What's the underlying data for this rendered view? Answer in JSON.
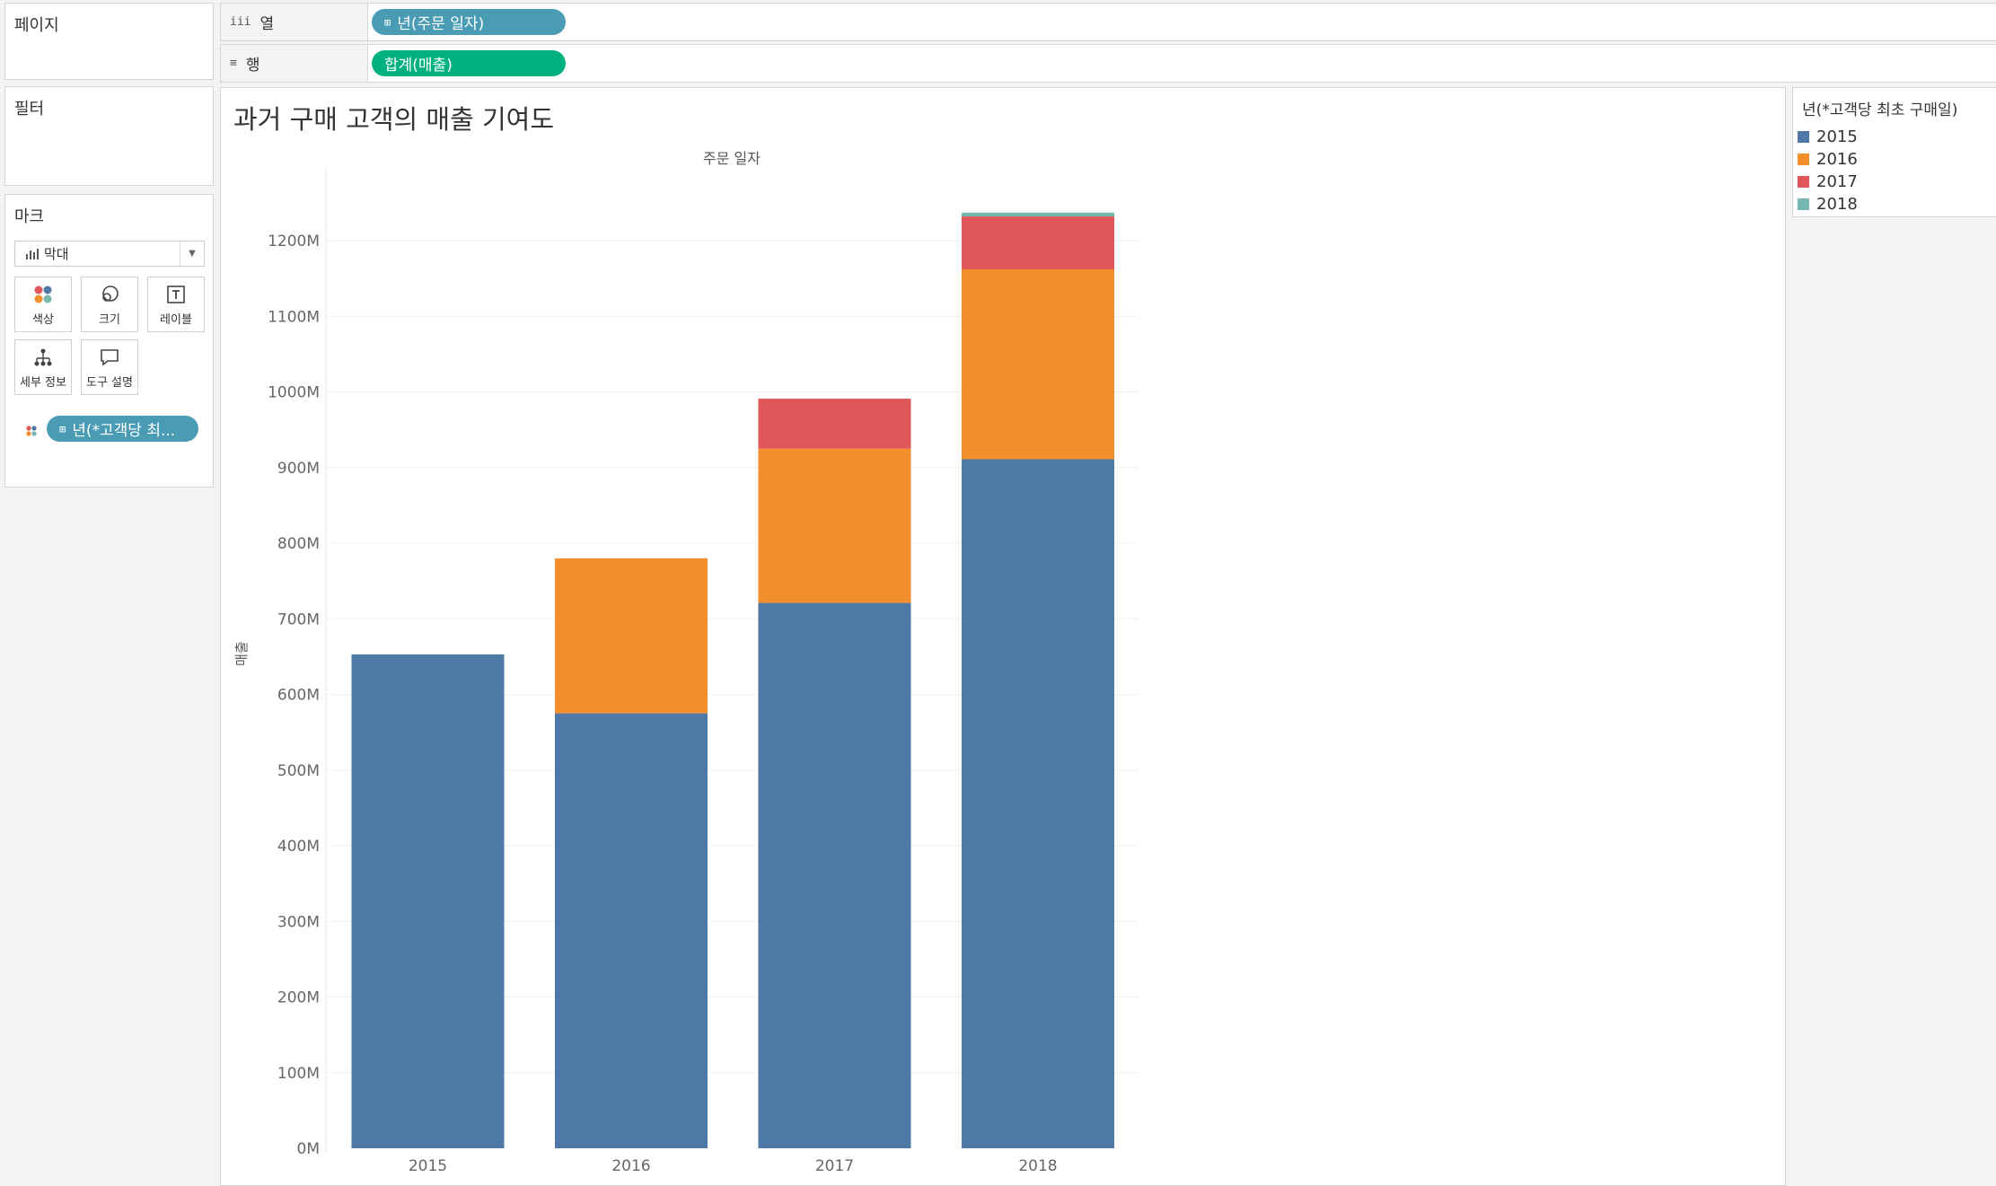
{
  "cards": {
    "pages_label": "페이지",
    "filters_label": "필터",
    "marks_label": "마크"
  },
  "shelves": {
    "columns_label": "열",
    "rows_label": "행",
    "column_pill": "년(주문 일자)",
    "row_pill": "합계(매출)"
  },
  "marks": {
    "mark_type": "막대",
    "buttons": {
      "color": "색상",
      "size": "크기",
      "label": "레이블",
      "detail": "세부 정보",
      "tooltip": "도구 설명"
    },
    "color_pill": "년(*고객당 최..."
  },
  "legend": {
    "title": "년(*고객당 최초 구매일)",
    "items": [
      {
        "label": "2015",
        "color": "#4e79a7"
      },
      {
        "label": "2016",
        "color": "#f28e2b"
      },
      {
        "label": "2017",
        "color": "#e15759"
      },
      {
        "label": "2018",
        "color": "#76b7b2"
      }
    ]
  },
  "chart_data": {
    "type": "bar",
    "stacked": true,
    "title": "과거 구매 고객의 매출 기여도",
    "xlabel": "주문 일자",
    "ylabel": "매출",
    "ylim": [
      0,
      1300
    ],
    "yticks": [
      "0M",
      "100M",
      "200M",
      "300M",
      "400M",
      "500M",
      "600M",
      "700M",
      "800M",
      "900M",
      "1000M",
      "1100M",
      "1200M"
    ],
    "categories": [
      "2015",
      "2016",
      "2017",
      "2018"
    ],
    "series": [
      {
        "name": "2015",
        "color": "#4e79a7",
        "values": [
          653,
          575,
          721,
          911
        ]
      },
      {
        "name": "2016",
        "color": "#f28e2b",
        "values": [
          0,
          205,
          204,
          251
        ]
      },
      {
        "name": "2017",
        "color": "#e15759",
        "values": [
          0,
          0,
          66,
          70
        ]
      },
      {
        "name": "2018",
        "color": "#76b7b2",
        "values": [
          0,
          0,
          0,
          5
        ]
      }
    ],
    "grid": true,
    "legend_position": "right"
  }
}
